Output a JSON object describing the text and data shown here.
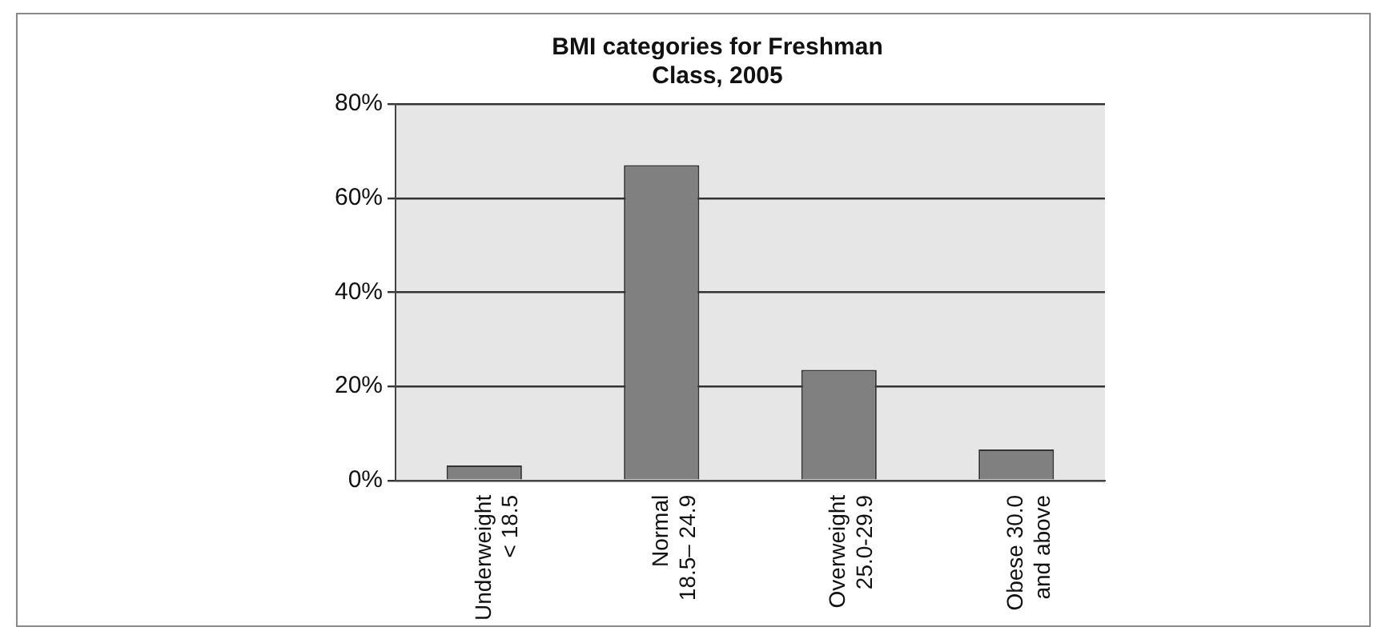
{
  "chart_data": {
    "type": "bar",
    "title": "BMI categories for Freshman\nClass, 2005",
    "categories": [
      "Underweight\n< 18.5",
      "Normal\n18.5– 24.9",
      "Overweight\n25.0-29.9",
      "Obese 30.0\nand above"
    ],
    "values": [
      3.2,
      67,
      23.5,
      6.6
    ],
    "color": "#808080",
    "ylim": [
      0,
      80
    ],
    "yticks": [
      {
        "value": 0,
        "label": "0%"
      },
      {
        "value": 20,
        "label": "20%"
      },
      {
        "value": 40,
        "label": "40%"
      },
      {
        "value": 60,
        "label": "60%"
      },
      {
        "value": 80,
        "label": "80%"
      }
    ],
    "grid": "y"
  }
}
